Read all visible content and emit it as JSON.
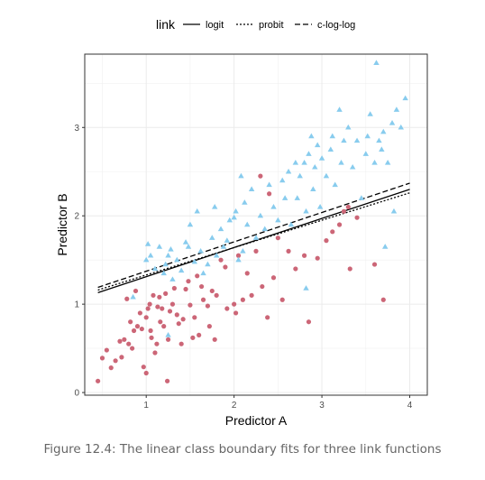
{
  "caption": "Figure 12.4: The linear class boundary fits for three link functions",
  "chart_data": {
    "type": "scatter",
    "xlabel": "Predictor A",
    "ylabel": "Predictor B",
    "xlim": [
      0.3,
      4.2
    ],
    "ylim": [
      -0.03,
      3.83
    ],
    "x_ticks": [
      1,
      2,
      3,
      4
    ],
    "y_ticks": [
      0,
      1,
      2,
      3
    ],
    "grid": true,
    "legend": {
      "title": "link",
      "position": "top",
      "entries": [
        {
          "label": "logit",
          "dash": "solid"
        },
        {
          "label": "probit",
          "dash": "dotted"
        },
        {
          "label": "c-log-log",
          "dash": "dashed"
        }
      ]
    },
    "colors": {
      "class1": "#cc6677",
      "class2": "#88ccee",
      "line": "#000000"
    },
    "lines": [
      {
        "name": "logit",
        "x": [
          0.45,
          4.0
        ],
        "y": [
          1.13,
          2.3
        ]
      },
      {
        "name": "probit",
        "x": [
          0.45,
          4.0
        ],
        "y": [
          1.16,
          2.26
        ]
      },
      {
        "name": "c-log-log",
        "x": [
          0.45,
          4.0
        ],
        "y": [
          1.19,
          2.37
        ]
      }
    ],
    "series": [
      {
        "marker": "circle",
        "color": "#cc6677",
        "points": [
          [
            0.45,
            0.13
          ],
          [
            0.5,
            0.39
          ],
          [
            0.55,
            0.48
          ],
          [
            0.6,
            0.28
          ],
          [
            0.65,
            0.36
          ],
          [
            0.7,
            0.58
          ],
          [
            0.72,
            0.4
          ],
          [
            0.75,
            0.6
          ],
          [
            0.78,
            1.06
          ],
          [
            0.8,
            0.55
          ],
          [
            0.82,
            0.8
          ],
          [
            0.84,
            0.5
          ],
          [
            0.86,
            0.7
          ],
          [
            0.88,
            1.15
          ],
          [
            0.9,
            0.75
          ],
          [
            0.93,
            0.9
          ],
          [
            0.95,
            0.72
          ],
          [
            0.97,
            0.29
          ],
          [
            1.0,
            0.22
          ],
          [
            1.0,
            0.85
          ],
          [
            1.02,
            0.95
          ],
          [
            1.04,
            1.0
          ],
          [
            1.05,
            0.7
          ],
          [
            1.06,
            0.62
          ],
          [
            1.08,
            1.1
          ],
          [
            1.1,
            0.45
          ],
          [
            1.12,
            0.55
          ],
          [
            1.13,
            0.97
          ],
          [
            1.15,
            1.08
          ],
          [
            1.16,
            0.8
          ],
          [
            1.18,
            0.95
          ],
          [
            1.2,
            0.75
          ],
          [
            1.22,
            1.12
          ],
          [
            1.24,
            0.13
          ],
          [
            1.25,
            0.6
          ],
          [
            1.27,
            0.92
          ],
          [
            1.3,
            1.0
          ],
          [
            1.32,
            1.18
          ],
          [
            1.35,
            0.88
          ],
          [
            1.37,
            0.78
          ],
          [
            1.4,
            0.55
          ],
          [
            1.42,
            0.83
          ],
          [
            1.45,
            1.17
          ],
          [
            1.48,
            1.26
          ],
          [
            1.5,
            0.99
          ],
          [
            1.53,
            0.62
          ],
          [
            1.55,
            0.85
          ],
          [
            1.58,
            1.32
          ],
          [
            1.6,
            0.65
          ],
          [
            1.63,
            1.2
          ],
          [
            1.65,
            1.05
          ],
          [
            1.7,
            0.98
          ],
          [
            1.72,
            0.75
          ],
          [
            1.75,
            1.15
          ],
          [
            1.78,
            0.6
          ],
          [
            1.8,
            1.1
          ],
          [
            1.85,
            1.5
          ],
          [
            1.9,
            1.42
          ],
          [
            1.92,
            0.95
          ],
          [
            2.0,
            1.0
          ],
          [
            2.02,
            0.9
          ],
          [
            2.05,
            1.55
          ],
          [
            2.1,
            1.05
          ],
          [
            2.15,
            1.35
          ],
          [
            2.2,
            1.1
          ],
          [
            2.25,
            1.6
          ],
          [
            2.3,
            2.45
          ],
          [
            2.32,
            1.2
          ],
          [
            2.38,
            0.85
          ],
          [
            2.4,
            2.25
          ],
          [
            2.45,
            1.3
          ],
          [
            2.5,
            1.75
          ],
          [
            2.55,
            1.05
          ],
          [
            2.62,
            1.6
          ],
          [
            2.7,
            1.4
          ],
          [
            2.8,
            1.55
          ],
          [
            2.85,
            0.8
          ],
          [
            2.95,
            1.52
          ],
          [
            3.05,
            1.72
          ],
          [
            3.12,
            1.82
          ],
          [
            3.2,
            1.9
          ],
          [
            3.25,
            2.05
          ],
          [
            3.3,
            2.1
          ],
          [
            3.32,
            1.4
          ],
          [
            3.4,
            1.98
          ],
          [
            3.6,
            1.45
          ],
          [
            3.7,
            1.05
          ]
        ]
      },
      {
        "marker": "triangle",
        "color": "#88ccee",
        "points": [
          [
            0.85,
            1.08
          ],
          [
            1.0,
            1.5
          ],
          [
            1.02,
            1.68
          ],
          [
            1.05,
            1.55
          ],
          [
            1.1,
            1.4
          ],
          [
            1.15,
            1.65
          ],
          [
            1.2,
            1.35
          ],
          [
            1.22,
            1.45
          ],
          [
            1.25,
            1.55
          ],
          [
            1.25,
            0.65
          ],
          [
            1.28,
            1.62
          ],
          [
            1.3,
            1.28
          ],
          [
            1.35,
            1.5
          ],
          [
            1.4,
            1.38
          ],
          [
            1.45,
            1.7
          ],
          [
            1.48,
            1.65
          ],
          [
            1.5,
            1.9
          ],
          [
            1.55,
            1.48
          ],
          [
            1.58,
            2.05
          ],
          [
            1.62,
            1.6
          ],
          [
            1.65,
            1.35
          ],
          [
            1.7,
            1.45
          ],
          [
            1.75,
            1.75
          ],
          [
            1.78,
            2.1
          ],
          [
            1.8,
            1.55
          ],
          [
            1.85,
            1.85
          ],
          [
            1.88,
            1.65
          ],
          [
            1.92,
            1.72
          ],
          [
            1.95,
            1.95
          ],
          [
            2.0,
            1.98
          ],
          [
            2.02,
            2.05
          ],
          [
            2.05,
            1.5
          ],
          [
            2.08,
            2.45
          ],
          [
            2.1,
            1.6
          ],
          [
            2.12,
            2.15
          ],
          [
            2.15,
            1.9
          ],
          [
            2.2,
            2.3
          ],
          [
            2.25,
            1.75
          ],
          [
            2.3,
            2.0
          ],
          [
            2.35,
            1.85
          ],
          [
            2.4,
            2.35
          ],
          [
            2.45,
            2.1
          ],
          [
            2.5,
            1.95
          ],
          [
            2.55,
            2.4
          ],
          [
            2.58,
            2.2
          ],
          [
            2.62,
            2.5
          ],
          [
            2.65,
            1.9
          ],
          [
            2.7,
            2.6
          ],
          [
            2.72,
            2.2
          ],
          [
            2.75,
            2.45
          ],
          [
            2.8,
            2.6
          ],
          [
            2.82,
            2.05
          ],
          [
            2.85,
            2.7
          ],
          [
            2.88,
            2.9
          ],
          [
            2.9,
            2.3
          ],
          [
            2.92,
            2.55
          ],
          [
            2.95,
            2.8
          ],
          [
            2.98,
            2.1
          ],
          [
            3.0,
            2.65
          ],
          [
            3.05,
            2.45
          ],
          [
            3.1,
            2.75
          ],
          [
            3.12,
            2.9
          ],
          [
            3.15,
            2.35
          ],
          [
            3.2,
            3.2
          ],
          [
            3.22,
            2.6
          ],
          [
            3.25,
            2.85
          ],
          [
            3.3,
            3.0
          ],
          [
            3.35,
            2.55
          ],
          [
            3.4,
            2.85
          ],
          [
            3.45,
            2.2
          ],
          [
            3.5,
            2.7
          ],
          [
            3.52,
            2.9
          ],
          [
            3.55,
            3.15
          ],
          [
            3.6,
            2.6
          ],
          [
            3.62,
            3.73
          ],
          [
            3.65,
            2.85
          ],
          [
            3.68,
            2.75
          ],
          [
            3.7,
            2.95
          ],
          [
            3.72,
            1.65
          ],
          [
            3.75,
            2.6
          ],
          [
            3.8,
            3.05
          ],
          [
            3.85,
            3.2
          ],
          [
            3.9,
            3.0
          ],
          [
            3.95,
            3.33
          ],
          [
            2.82,
            1.18
          ],
          [
            3.82,
            2.05
          ]
        ]
      }
    ]
  }
}
